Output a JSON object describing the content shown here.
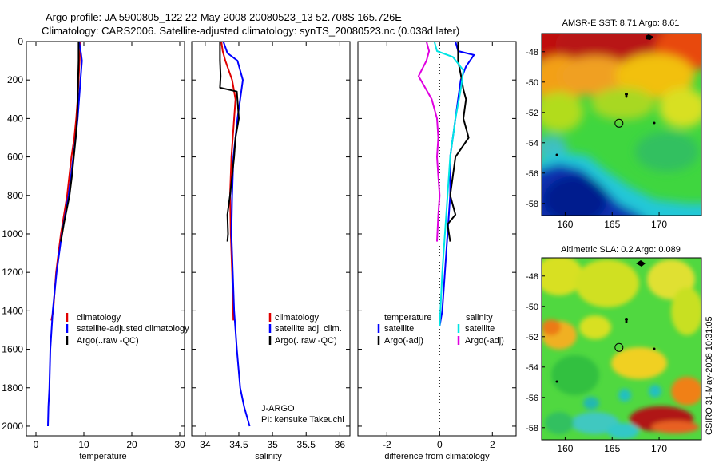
{
  "header": {
    "line1": "Argo profile: JA 5900805_122 22-May-2008 20080523_13 52.708S 165.726E",
    "line2": "Climatology: CARS2006. Satellite-adjusted climatology: synTS_20080523.nc (0.038d later)"
  },
  "colors": {
    "climatology": "#e00000",
    "satellite": "#0000ff",
    "argo": "#000000",
    "cyan": "#00e5e5",
    "magenta": "#e000e0"
  },
  "chart_data": [
    {
      "type": "line",
      "name": "temperature-profile",
      "xlabel": "temperature",
      "ylabel": "",
      "xlim": [
        -2,
        31
      ],
      "ylim": [
        2050,
        0
      ],
      "xticks": [
        "0",
        "10",
        "20",
        "30"
      ],
      "yticks": [
        "0",
        "200",
        "400",
        "600",
        "800",
        "1000",
        "1200",
        "1400",
        "1600",
        "1800",
        "2000"
      ],
      "legend": {
        "placement": "lower-right",
        "entries": [
          "climatology",
          "satellite-adjusted climatology",
          "Argo(..raw -QC)"
        ]
      },
      "series": [
        {
          "name": "climatology",
          "x": [
            9.3,
            9.2,
            9.1,
            8.9,
            8.7,
            8.4,
            8.0,
            7.4,
            6.5,
            5.2,
            4.2,
            3.6,
            3.2
          ],
          "y": [
            0,
            50,
            100,
            200,
            300,
            400,
            500,
            600,
            800,
            1000,
            1200,
            1400,
            1450
          ]
        },
        {
          "name": "satellite-adjusted climatology",
          "x": [
            9.0,
            9.4,
            9.6,
            9.3,
            9.0,
            8.7,
            8.3,
            7.8,
            6.8,
            5.4,
            4.3,
            3.5,
            3.0,
            2.8,
            2.6,
            2.5
          ],
          "y": [
            0,
            60,
            100,
            200,
            300,
            400,
            500,
            600,
            800,
            1000,
            1200,
            1400,
            1600,
            1800,
            1900,
            2000
          ]
        },
        {
          "name": "Argo(..raw -QC)",
          "x": [
            8.9,
            8.9,
            8.8,
            8.7,
            8.6,
            8.3,
            7.9,
            7.5,
            7.0,
            5.8,
            5.2
          ],
          "y": [
            0,
            100,
            200,
            300,
            400,
            500,
            600,
            700,
            800,
            950,
            1040
          ]
        }
      ]
    },
    {
      "type": "line",
      "name": "salinity-profile",
      "xlabel": "salinity",
      "ylabel": "",
      "xlim": [
        33.8,
        36.15
      ],
      "ylim": [
        2050,
        0
      ],
      "xticks": [
        "34",
        "34.5",
        "35",
        "35.5",
        "36"
      ],
      "legend": {
        "placement": "lower-right",
        "entries": [
          "climatology",
          "satellite adj. clim.",
          "Argo(..raw -QC)"
        ]
      },
      "annotation": [
        "J-ARGO",
        "PI: kensuke Takeuchi"
      ],
      "series": [
        {
          "name": "climatology",
          "x": [
            34.24,
            34.26,
            34.3,
            34.4,
            34.45,
            34.43,
            34.41,
            34.39,
            34.37,
            34.38,
            34.4,
            34.42
          ],
          "y": [
            0,
            50,
            100,
            200,
            300,
            400,
            500,
            600,
            800,
            1000,
            1200,
            1450
          ]
        },
        {
          "name": "satellite adj. clim.",
          "x": [
            34.27,
            34.33,
            34.48,
            34.56,
            34.52,
            34.48,
            34.45,
            34.42,
            34.4,
            34.39,
            34.41,
            34.43,
            34.47,
            34.52,
            34.58,
            34.66
          ],
          "y": [
            0,
            60,
            100,
            200,
            300,
            400,
            500,
            600,
            800,
            1000,
            1200,
            1400,
            1600,
            1800,
            1900,
            2000
          ]
        },
        {
          "name": "Argo(..raw -QC)",
          "x": [
            34.22,
            34.22,
            34.23,
            34.22,
            34.47,
            34.5,
            34.45,
            34.43,
            34.37,
            34.33,
            34.34,
            34.33
          ],
          "y": [
            0,
            100,
            180,
            240,
            260,
            400,
            500,
            600,
            800,
            900,
            1000,
            1040
          ]
        }
      ]
    },
    {
      "type": "line",
      "name": "difference-profile",
      "xlabel": "difference from climatology",
      "ylabel": "",
      "xlim": [
        -3.1,
        2.9
      ],
      "ylim": [
        2050,
        0
      ],
      "xticks": [
        "-2",
        "0",
        "2"
      ],
      "reference_line_x": 0,
      "legend": {
        "placement": "lower",
        "headers": [
          "temperature",
          "salinity"
        ],
        "entries": [
          "satellite",
          "Argo(-adj)",
          "satellite",
          "Argo(-adj)"
        ]
      },
      "series": [
        {
          "name": "temperature satellite",
          "x": [
            0.6,
            0.7,
            1.3,
            1.0,
            0.8,
            0.7,
            0.6,
            0.5,
            0.4,
            0.4,
            0.3,
            0.2,
            0.1,
            0.0
          ],
          "y": [
            0,
            50,
            70,
            130,
            200,
            300,
            400,
            500,
            600,
            800,
            1000,
            1200,
            1400,
            1480
          ]
        },
        {
          "name": "temperature Argo(-adj)",
          "x": [
            0.7,
            0.7,
            0.8,
            0.9,
            1.0,
            0.9,
            1.1,
            0.6,
            0.5,
            0.4,
            0.6,
            0.3,
            0.4
          ],
          "y": [
            0,
            100,
            170,
            250,
            300,
            400,
            500,
            600,
            700,
            800,
            900,
            950,
            1040
          ]
        },
        {
          "name": "salinity satellite",
          "x": [
            -0.2,
            -0.1,
            0.5,
            0.9,
            0.8,
            0.6,
            0.5,
            0.4,
            0.3,
            0.2,
            0.1,
            0.0
          ],
          "y": [
            0,
            50,
            80,
            150,
            250,
            400,
            500,
            600,
            800,
            1000,
            1200,
            1480
          ]
        },
        {
          "name": "salinity Argo(-adj)",
          "x": [
            -0.5,
            -0.4,
            -0.5,
            -0.8,
            -0.3,
            -0.1,
            -0.05,
            -0.1,
            -0.05,
            0.0,
            -0.05,
            -0.1
          ],
          "y": [
            0,
            50,
            100,
            180,
            300,
            400,
            500,
            600,
            700,
            800,
            900,
            1040
          ]
        }
      ]
    },
    {
      "type": "heatmap",
      "name": "sst-map",
      "title": "AMSR-E SST: 8.71 Argo: 8.61",
      "xlim": [
        157.5,
        174.5
      ],
      "ylim": [
        -58.8,
        -46.8
      ],
      "xticks": [
        "160",
        "165",
        "170"
      ],
      "yticks": [
        "-48",
        "-50",
        "-52",
        "-54",
        "-56",
        "-58"
      ],
      "argo_position": {
        "lon": 165.726,
        "lat": -52.708
      }
    },
    {
      "type": "heatmap",
      "name": "sla-map",
      "title": "Altimetric SLA: 0.2 Argo: 0.089",
      "xlim": [
        157.5,
        174.5
      ],
      "ylim": [
        -58.8,
        -46.8
      ],
      "xticks": [
        "160",
        "165",
        "170"
      ],
      "yticks": [
        "-48",
        "-50",
        "-52",
        "-54",
        "-56",
        "-58"
      ],
      "argo_position": {
        "lon": 165.726,
        "lat": -52.708
      }
    }
  ],
  "credit": "CSIRO 31-May-2008 10:31:05"
}
